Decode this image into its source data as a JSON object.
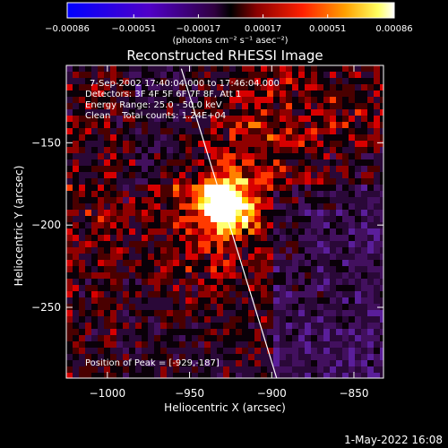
{
  "chart_data": {
    "type": "heatmap",
    "title": "Reconstructed RHESSI Image",
    "xlabel": "Heliocentric X (arcsec)",
    "ylabel": "Heliocentric Y (arcsec)",
    "xlim": [
      -1025,
      -832
    ],
    "ylim": [
      -293,
      -103
    ],
    "x_ticks": [
      {
        "value": -1000,
        "label": "−1000"
      },
      {
        "value": -950,
        "label": "−950"
      },
      {
        "value": -900,
        "label": "−900"
      },
      {
        "value": -850,
        "label": "−850"
      }
    ],
    "y_ticks": [
      {
        "value": -150,
        "label": "−150"
      },
      {
        "value": -200,
        "label": "−200"
      },
      {
        "value": -250,
        "label": "−250"
      }
    ],
    "colorbar": {
      "min": -0.00086,
      "max": 0.00086,
      "ticks": [
        {
          "value": -0.00086,
          "label": "−0.00086"
        },
        {
          "value": -0.00051,
          "label": "−0.00051"
        },
        {
          "value": -0.00017,
          "label": "−0.00017"
        },
        {
          "value": 0.00017,
          "label": "0.00017"
        },
        {
          "value": 0.00051,
          "label": "0.00051"
        },
        {
          "value": 0.00086,
          "label": "0.00086"
        }
      ],
      "unit_label": "(photons cm⁻² s⁻¹ asec⁻²)"
    },
    "peak": {
      "x": -929,
      "y": -187
    },
    "limb_line": {
      "start": [
        -955,
        -105
      ],
      "end": [
        -897,
        -293
      ]
    },
    "annotations": [
      "7-Sep-2002 17:40:04.000 to 17:46:04.000",
      "Detectors: 3F 4F 5F 6F 7F 8F, Att 1",
      "Energy Range: 25.0 - 50.0 keV",
      "Clean    Total counts: 1.24E+04",
      "Position of Peak = [-929,-187]"
    ],
    "footer_date": "1-May-2022 16:08",
    "colors": {
      "negative": [
        "#0000ff",
        "#4b00c0",
        "#5a1e9a",
        "#3a0a52"
      ],
      "positive": [
        "#7a0000",
        "#c80000",
        "#ff4a00",
        "#ff9a00",
        "#ffe000",
        "#ffffff"
      ]
    }
  }
}
